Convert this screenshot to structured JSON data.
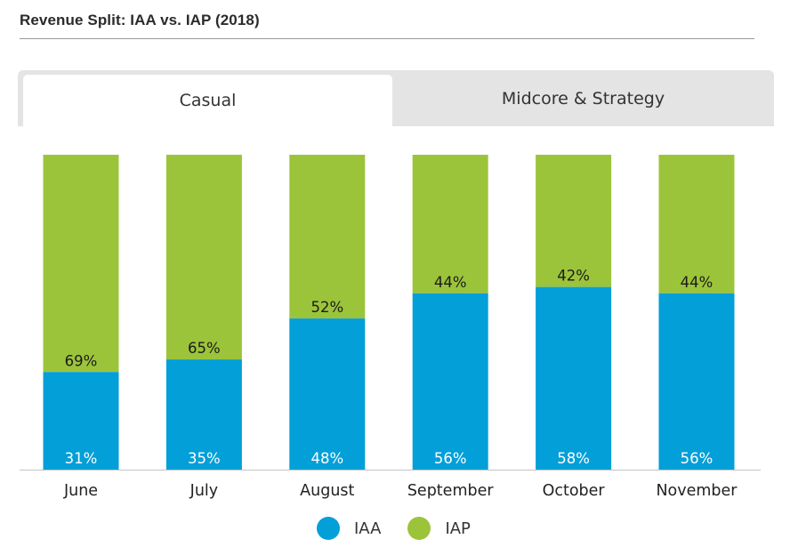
{
  "header": {
    "title": "Revenue Split: IAA vs. IAP (2018)"
  },
  "tabs": [
    {
      "label": "Casual",
      "active": true
    },
    {
      "label": "Midcore & Strategy",
      "active": false
    }
  ],
  "colors": {
    "iaa": "#039fd8",
    "iap": "#9cc43a",
    "tab_inactive": "#e4e4e4",
    "axis": "#c4c4c4"
  },
  "chart_data": {
    "type": "bar",
    "stacked": true,
    "percent": true,
    "categories": [
      "June",
      "July",
      "August",
      "September",
      "October",
      "November"
    ],
    "series": [
      {
        "name": "IAA",
        "values": [
          31,
          35,
          48,
          56,
          58,
          56
        ],
        "labels": [
          "31%",
          "35%",
          "48%",
          "56%",
          "58%",
          "56%"
        ]
      },
      {
        "name": "IAP",
        "values": [
          69,
          65,
          52,
          44,
          42,
          44
        ],
        "labels": [
          "69%",
          "65%",
          "52%",
          "44%",
          "42%",
          "44%"
        ]
      }
    ],
    "ylim": [
      0,
      100
    ],
    "grid": false,
    "legend_position": "bottom-center"
  }
}
